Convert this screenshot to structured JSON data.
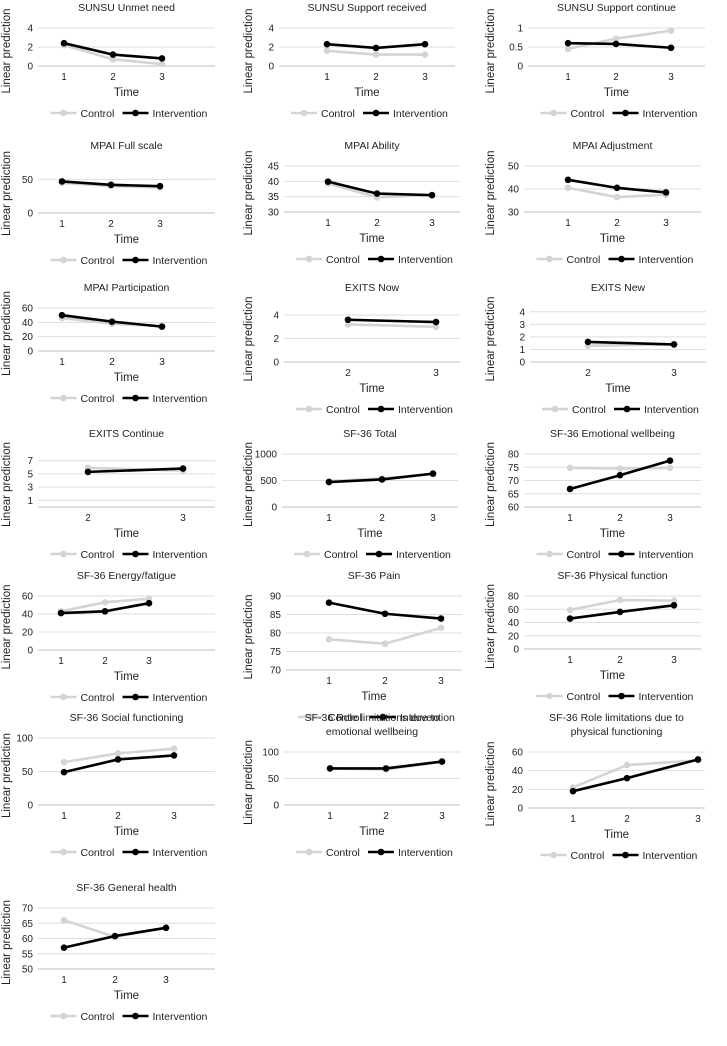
{
  "colors": {
    "control": "#d4d4d4",
    "intervention": "#000000",
    "grid": "#dedede",
    "axis": "#bfbfbf",
    "text": "#222222"
  },
  "common": {
    "xlabel": "Time",
    "ylabel": "Linear prediction",
    "legend": [
      "Control",
      "Intervention"
    ]
  },
  "chart_data": [
    {
      "type": "line",
      "title": [
        "SUNSU Unmet need"
      ],
      "categories": [
        "1",
        "2",
        "3"
      ],
      "yticks": [
        0,
        2,
        4
      ],
      "ylim": [
        0,
        4
      ],
      "series": [
        {
          "name": "Control",
          "values": [
            2.2,
            0.7,
            0.2
          ]
        },
        {
          "name": "Intervention",
          "values": [
            2.4,
            1.2,
            0.8
          ]
        }
      ]
    },
    {
      "type": "line",
      "title": [
        "SUNSU Support received"
      ],
      "categories": [
        "1",
        "2",
        "3"
      ],
      "yticks": [
        0,
        2,
        4
      ],
      "ylim": [
        0,
        4
      ],
      "series": [
        {
          "name": "Control",
          "values": [
            1.6,
            1.2,
            1.2
          ]
        },
        {
          "name": "Intervention",
          "values": [
            2.3,
            1.9,
            2.3
          ]
        }
      ]
    },
    {
      "type": "line",
      "title": [
        "SUNSU Support continue"
      ],
      "categories": [
        "1",
        "2",
        "3"
      ],
      "yticks": [
        0,
        0.5,
        1
      ],
      "ylim": [
        0,
        1
      ],
      "series": [
        {
          "name": "Control",
          "values": [
            0.45,
            0.72,
            0.93
          ]
        },
        {
          "name": "Intervention",
          "values": [
            0.6,
            0.58,
            0.48
          ]
        }
      ]
    },
    {
      "type": "line",
      "title": [
        "MPAI Full scale"
      ],
      "categories": [
        "1",
        "2",
        "3"
      ],
      "yticks": [
        0,
        50
      ],
      "ylim": [
        0,
        70
      ],
      "series": [
        {
          "name": "Control",
          "values": [
            45,
            40,
            38
          ]
        },
        {
          "name": "Intervention",
          "values": [
            47,
            42,
            40
          ]
        }
      ]
    },
    {
      "type": "line",
      "title": [
        "MPAI Ability"
      ],
      "categories": [
        "1",
        "2",
        "3"
      ],
      "yticks": [
        30,
        35,
        40,
        45
      ],
      "ylim": [
        30,
        45
      ],
      "series": [
        {
          "name": "Control",
          "values": [
            39.3,
            34.8,
            35.6
          ]
        },
        {
          "name": "Intervention",
          "values": [
            39.9,
            36.0,
            35.5
          ]
        }
      ]
    },
    {
      "type": "line",
      "title": [
        "MPAI Adjustment"
      ],
      "categories": [
        "1",
        "2",
        "3"
      ],
      "yticks": [
        30,
        40,
        50
      ],
      "ylim": [
        30,
        50
      ],
      "series": [
        {
          "name": "Control",
          "values": [
            40.5,
            36.5,
            37.5
          ]
        },
        {
          "name": "Intervention",
          "values": [
            44,
            40.5,
            38.5
          ]
        }
      ]
    },
    {
      "type": "line",
      "title": [
        "MPAI Participation"
      ],
      "categories": [
        "1",
        "2",
        "3"
      ],
      "yticks": [
        0,
        20,
        40,
        60
      ],
      "ylim": [
        0,
        60
      ],
      "series": [
        {
          "name": "Control",
          "values": [
            46,
            38,
            35
          ]
        },
        {
          "name": "Intervention",
          "values": [
            50,
            41,
            34
          ]
        }
      ]
    },
    {
      "type": "line",
      "title": [
        "EXITS Now"
      ],
      "categories": [
        "2",
        "3"
      ],
      "yticks": [
        0,
        2,
        4
      ],
      "ylim": [
        0,
        4.6
      ],
      "series": [
        {
          "name": "Control",
          "values": [
            3.2,
            3.0
          ]
        },
        {
          "name": "Intervention",
          "values": [
            3.6,
            3.4
          ]
        }
      ]
    },
    {
      "type": "line",
      "title": [
        "EXITS New"
      ],
      "categories": [
        "2",
        "3"
      ],
      "yticks": [
        0,
        1,
        2,
        3,
        4
      ],
      "ylim": [
        0,
        4.3
      ],
      "series": [
        {
          "name": "Control",
          "values": [
            1.3,
            1.4
          ]
        },
        {
          "name": "Intervention",
          "values": [
            1.6,
            1.4
          ]
        }
      ]
    },
    {
      "type": "line",
      "title": [
        "EXITS Continue"
      ],
      "categories": [
        "2",
        "3"
      ],
      "yticks": [
        1,
        3,
        5,
        7
      ],
      "ylim": [
        0,
        8
      ],
      "series": [
        {
          "name": "Control",
          "values": [
            5.9,
            5.5
          ]
        },
        {
          "name": "Intervention",
          "values": [
            5.3,
            5.8
          ]
        }
      ]
    },
    {
      "type": "line",
      "title": [
        "SF-36 Total"
      ],
      "categories": [
        "1",
        "2",
        "3"
      ],
      "yticks": [
        0,
        500,
        1000
      ],
      "ylim": [
        0,
        1000
      ],
      "series": [
        {
          "name": "Control",
          "values": [
            490,
            540,
            620
          ]
        },
        {
          "name": "Intervention",
          "values": [
            470,
            520,
            630
          ]
        }
      ]
    },
    {
      "type": "line",
      "title": [
        "SF-36 Emotional wellbeing"
      ],
      "categories": [
        "1",
        "2",
        "3"
      ],
      "yticks": [
        60,
        65,
        70,
        75,
        80
      ],
      "ylim": [
        60,
        80
      ],
      "series": [
        {
          "name": "Control",
          "values": [
            74.8,
            74.5,
            74.8
          ]
        },
        {
          "name": "Intervention",
          "values": [
            66.8,
            72.0,
            77.5
          ]
        }
      ]
    },
    {
      "type": "line",
      "title": [
        "SF-36 Energy/fatigue"
      ],
      "categories": [
        "1",
        "2",
        "3"
      ],
      "yticks": [
        0,
        20,
        40,
        60
      ],
      "ylim": [
        0,
        60
      ],
      "series": [
        {
          "name": "Control",
          "values": [
            43,
            53,
            57
          ]
        },
        {
          "name": "Intervention",
          "values": [
            41,
            43,
            52
          ]
        }
      ]
    },
    {
      "type": "line",
      "title": [
        "SF-36 Pain"
      ],
      "categories": [
        "1",
        "2",
        "3"
      ],
      "yticks": [
        70,
        75,
        80,
        85,
        90
      ],
      "ylim": [
        70,
        90
      ],
      "series": [
        {
          "name": "Control",
          "values": [
            78.3,
            77.1,
            81.4
          ]
        },
        {
          "name": "Intervention",
          "values": [
            88.2,
            85.2,
            83.9
          ]
        }
      ]
    },
    {
      "type": "line",
      "title": [
        "SF-36 Physical function"
      ],
      "categories": [
        "1",
        "2",
        "3"
      ],
      "yticks": [
        0,
        20,
        40,
        60,
        80
      ],
      "ylim": [
        0,
        80
      ],
      "series": [
        {
          "name": "Control",
          "values": [
            59,
            74,
            73
          ]
        },
        {
          "name": "Intervention",
          "values": [
            46,
            56,
            66
          ]
        }
      ]
    },
    {
      "type": "line",
      "title": [
        "SF-36 Social functioning"
      ],
      "categories": [
        "1",
        "2",
        "3"
      ],
      "yticks": [
        0,
        50,
        100
      ],
      "ylim": [
        0,
        100
      ],
      "series": [
        {
          "name": "Control",
          "values": [
            64,
            77,
            84
          ]
        },
        {
          "name": "Intervention",
          "values": [
            49,
            68,
            74
          ]
        }
      ]
    },
    {
      "type": "line",
      "title": [
        "SF-36 Role limitations due to",
        "emotional wellbeing"
      ],
      "categories": [
        "1",
        "2",
        "3"
      ],
      "yticks": [
        0,
        50,
        100
      ],
      "ylim": [
        0,
        100
      ],
      "series": [
        {
          "name": "Control",
          "values": [
            69,
            67,
            82
          ]
        },
        {
          "name": "Intervention",
          "values": [
            69,
            69,
            82
          ]
        }
      ]
    },
    {
      "type": "line",
      "title": [
        "SF-36 Role limitations due to",
        "physical functioning"
      ],
      "categories": [
        "1",
        "2",
        "3"
      ],
      "yticks": [
        0,
        20,
        40,
        60
      ],
      "ylim": [
        0,
        60
      ],
      "series": [
        {
          "name": "Control",
          "values": [
            22,
            46,
            51
          ]
        },
        {
          "name": "Intervention",
          "values": [
            18,
            32,
            52
          ]
        }
      ]
    },
    {
      "type": "line",
      "title": [
        "SF-36 General health"
      ],
      "categories": [
        "1",
        "2",
        "3"
      ],
      "yticks": [
        50,
        55,
        60,
        65,
        70
      ],
      "ylim": [
        50,
        70
      ],
      "series": [
        {
          "name": "Control",
          "values": [
            66,
            60.5,
            63.5
          ]
        },
        {
          "name": "Intervention",
          "values": [
            57,
            60.8,
            63.5
          ]
        }
      ]
    }
  ]
}
